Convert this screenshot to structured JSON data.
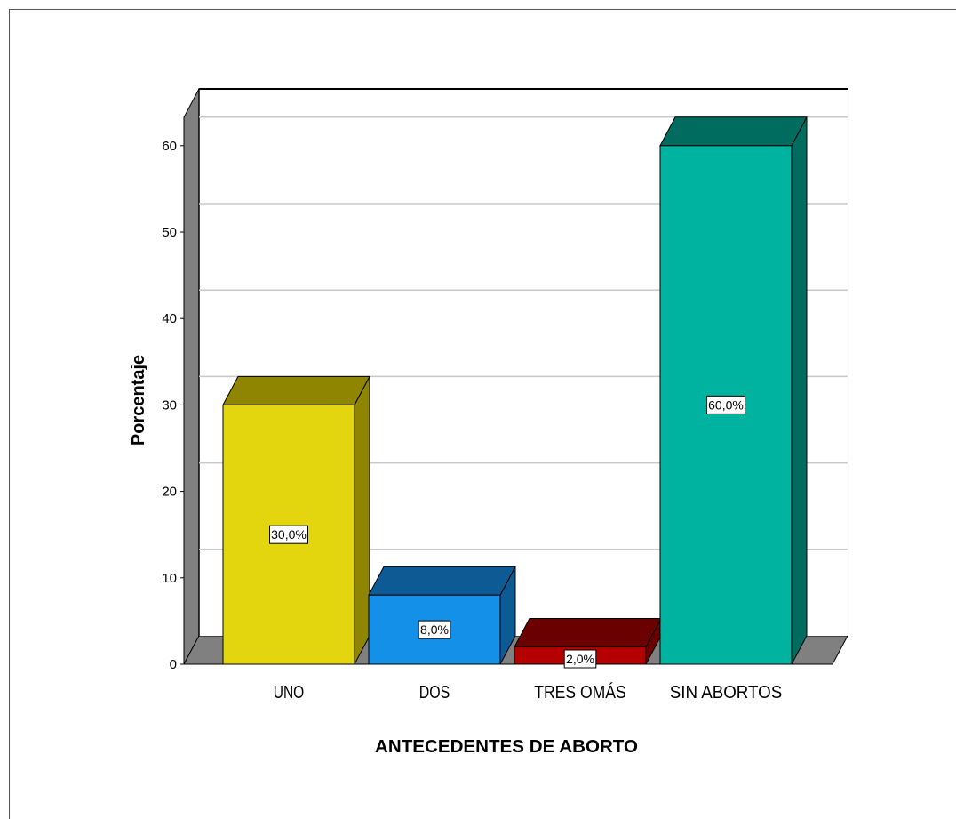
{
  "chart_data": {
    "type": "bar",
    "categories": [
      "UNO",
      "DOS",
      "TRES OMÁS",
      "SIN ABORTOS"
    ],
    "values": [
      30,
      8,
      2,
      60
    ],
    "data_labels": [
      "30,0%",
      "8,0%",
      "2,0%",
      "60,0%"
    ],
    "xlabel": "ANTECEDENTES DE ABORTO",
    "ylabel": "Porcentaje",
    "ylim": [
      0,
      65
    ],
    "yticks": [
      0,
      10,
      20,
      30,
      40,
      50,
      60
    ],
    "grid": true,
    "style": "3d",
    "colors": {
      "UNO": "#e3d60f",
      "DOS": "#1590e8",
      "TRES OMÁS": "#b50000",
      "SIN ABORTOS": "#00b3a0"
    },
    "side_colors": {
      "UNO": "#8f8500",
      "DOS": "#0d5a94",
      "TRES OMÁS": "#6b0000",
      "SIN ABORTOS": "#006b5f"
    }
  }
}
